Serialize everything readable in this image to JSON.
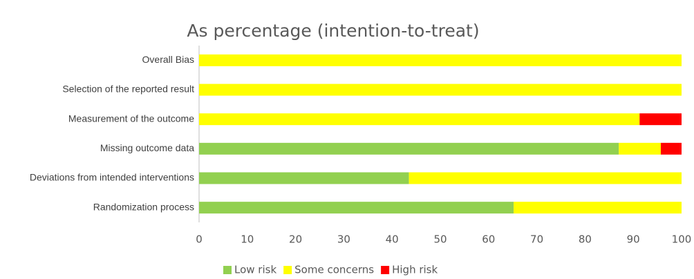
{
  "chart_data": {
    "type": "stacked_barh",
    "title": "As percentage (intention-to-treat)",
    "categories": [
      "Overall Bias",
      "Selection of the reported result",
      "Measurement of the outcome",
      "Missing outcome data",
      "Deviations from intended interventions",
      "Randomization process"
    ],
    "series": [
      {
        "name": "Low risk",
        "color": "#92d050",
        "values": [
          0,
          0,
          0,
          87,
          43.5,
          65.2
        ]
      },
      {
        "name": "Some concerns",
        "color": "#ffff00",
        "values": [
          100,
          100,
          91.3,
          8.7,
          56.5,
          34.8
        ]
      },
      {
        "name": "High risk",
        "color": "#ff0000",
        "values": [
          0,
          0,
          8.7,
          4.3,
          0,
          0
        ]
      }
    ],
    "xlim": [
      0,
      100
    ],
    "xticks": [
      0,
      10,
      20,
      30,
      40,
      50,
      60,
      70,
      80,
      90,
      100
    ],
    "grid": false,
    "legend": "bottom"
  }
}
